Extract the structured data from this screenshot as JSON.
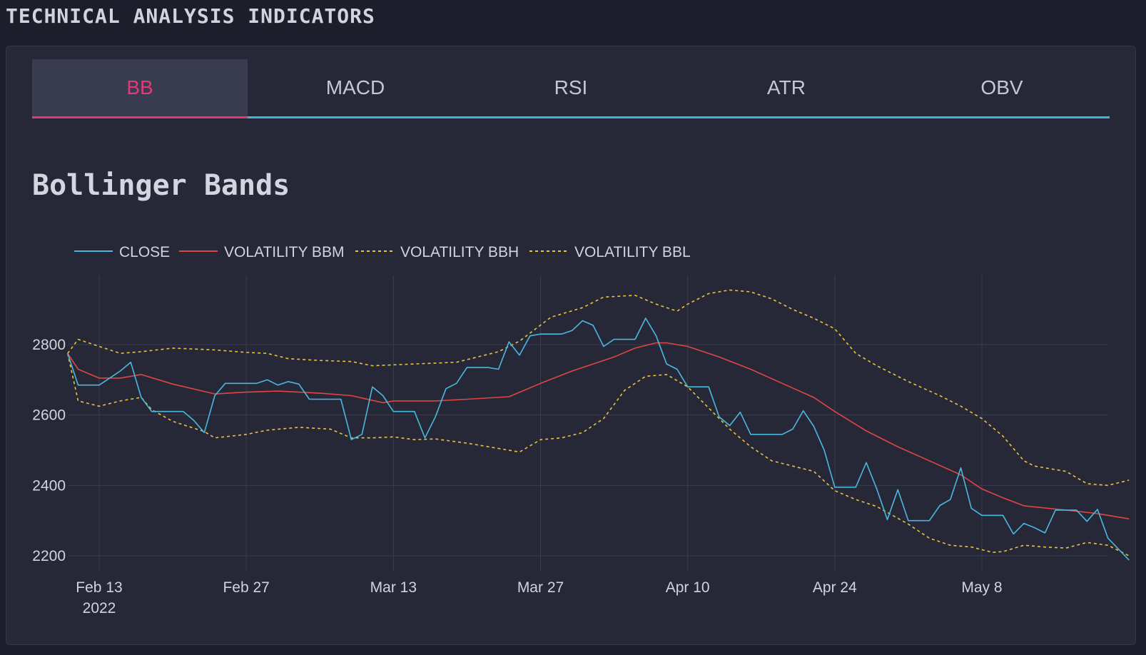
{
  "header": {
    "title": "TECHNICAL ANALYSIS INDICATORS"
  },
  "tabs": [
    {
      "label": "BB",
      "active": true
    },
    {
      "label": "MACD",
      "active": false
    },
    {
      "label": "RSI",
      "active": false
    },
    {
      "label": "ATR",
      "active": false
    },
    {
      "label": "OBV",
      "active": false
    }
  ],
  "colors": {
    "close": "#4ab8dd",
    "bbm": "#e04545",
    "bbh": "#e8c33c",
    "bbl": "#e8c33c",
    "grid": "#3a3c50",
    "active_tab": "#e23a78",
    "tab_underline": "#3fb5dc"
  },
  "chart_data": {
    "type": "line",
    "title": "Bollinger Bands",
    "xlabel": "",
    "ylabel": "",
    "ylim": [
      2170,
      2990
    ],
    "yticks": [
      2200,
      2400,
      2600,
      2800
    ],
    "xticks": [
      {
        "date": "2022-02-13",
        "label": "Feb 13",
        "sublabel": "2022"
      },
      {
        "date": "2022-02-27",
        "label": "Feb 27",
        "sublabel": ""
      },
      {
        "date": "2022-03-13",
        "label": "Mar 13",
        "sublabel": ""
      },
      {
        "date": "2022-03-27",
        "label": "Mar 27",
        "sublabel": ""
      },
      {
        "date": "2022-04-10",
        "label": "Apr 10",
        "sublabel": ""
      },
      {
        "date": "2022-04-24",
        "label": "Apr 24",
        "sublabel": ""
      },
      {
        "date": "2022-05-08",
        "label": "May 8",
        "sublabel": ""
      }
    ],
    "xrange": [
      "2022-02-10",
      "2022-05-20"
    ],
    "grid": true,
    "legend_position": "top-left",
    "series": [
      {
        "name": "CLOSE",
        "style": "solid",
        "color_key": "close",
        "points": [
          [
            "2022-02-10",
            2775
          ],
          [
            "2022-02-11",
            2685
          ],
          [
            "2022-02-13",
            2685
          ],
          [
            "2022-02-14",
            2705
          ],
          [
            "2022-02-15",
            2725
          ],
          [
            "2022-02-16",
            2750
          ],
          [
            "2022-02-17",
            2650
          ],
          [
            "2022-02-18",
            2610
          ],
          [
            "2022-02-20",
            2610
          ],
          [
            "2022-02-21",
            2610
          ],
          [
            "2022-02-22",
            2585
          ],
          [
            "2022-02-23",
            2550
          ],
          [
            "2022-02-24",
            2655
          ],
          [
            "2022-02-25",
            2690
          ],
          [
            "2022-02-27",
            2690
          ],
          [
            "2022-02-28",
            2690
          ],
          [
            "2022-03-01",
            2700
          ],
          [
            "2022-03-02",
            2685
          ],
          [
            "2022-03-03",
            2695
          ],
          [
            "2022-03-04",
            2688
          ],
          [
            "2022-03-05",
            2645
          ],
          [
            "2022-03-07",
            2645
          ],
          [
            "2022-03-08",
            2645
          ],
          [
            "2022-03-09",
            2530
          ],
          [
            "2022-03-10",
            2545
          ],
          [
            "2022-03-11",
            2680
          ],
          [
            "2022-03-12",
            2655
          ],
          [
            "2022-03-13",
            2610
          ],
          [
            "2022-03-15",
            2610
          ],
          [
            "2022-03-16",
            2535
          ],
          [
            "2022-03-17",
            2595
          ],
          [
            "2022-03-18",
            2675
          ],
          [
            "2022-03-19",
            2690
          ],
          [
            "2022-03-20",
            2735
          ],
          [
            "2022-03-22",
            2735
          ],
          [
            "2022-03-23",
            2730
          ],
          [
            "2022-03-24",
            2808
          ],
          [
            "2022-03-25",
            2770
          ],
          [
            "2022-03-26",
            2825
          ],
          [
            "2022-03-27",
            2830
          ],
          [
            "2022-03-29",
            2830
          ],
          [
            "2022-03-30",
            2840
          ],
          [
            "2022-03-31",
            2868
          ],
          [
            "2022-04-01",
            2855
          ],
          [
            "2022-04-02",
            2795
          ],
          [
            "2022-04-03",
            2815
          ],
          [
            "2022-04-05",
            2815
          ],
          [
            "2022-04-06",
            2875
          ],
          [
            "2022-04-07",
            2825
          ],
          [
            "2022-04-08",
            2745
          ],
          [
            "2022-04-09",
            2730
          ],
          [
            "2022-04-10",
            2680
          ],
          [
            "2022-04-12",
            2680
          ],
          [
            "2022-04-13",
            2595
          ],
          [
            "2022-04-14",
            2570
          ],
          [
            "2022-04-15",
            2608
          ],
          [
            "2022-04-16",
            2545
          ],
          [
            "2022-04-17",
            2545
          ],
          [
            "2022-04-19",
            2545
          ],
          [
            "2022-04-20",
            2560
          ],
          [
            "2022-04-21",
            2612
          ],
          [
            "2022-04-22",
            2568
          ],
          [
            "2022-04-23",
            2500
          ],
          [
            "2022-04-24",
            2395
          ],
          [
            "2022-04-26",
            2395
          ],
          [
            "2022-04-27",
            2465
          ],
          [
            "2022-04-28",
            2390
          ],
          [
            "2022-04-29",
            2303
          ],
          [
            "2022-04-30",
            2388
          ],
          [
            "2022-05-01",
            2300
          ],
          [
            "2022-05-03",
            2300
          ],
          [
            "2022-05-04",
            2343
          ],
          [
            "2022-05-05",
            2360
          ],
          [
            "2022-05-06",
            2450
          ],
          [
            "2022-05-07",
            2335
          ],
          [
            "2022-05-08",
            2315
          ],
          [
            "2022-05-10",
            2315
          ],
          [
            "2022-05-11",
            2262
          ],
          [
            "2022-05-12",
            2292
          ],
          [
            "2022-05-13",
            2280
          ],
          [
            "2022-05-14",
            2265
          ],
          [
            "2022-05-15",
            2330
          ],
          [
            "2022-05-17",
            2330
          ],
          [
            "2022-05-18",
            2298
          ],
          [
            "2022-05-19",
            2332
          ],
          [
            "2022-05-20",
            2250
          ],
          [
            "2022-05-22",
            2188
          ]
        ]
      },
      {
        "name": "VOLATILITY BBM",
        "style": "solid",
        "color_key": "bbm",
        "points": [
          [
            "2022-02-10",
            2775
          ],
          [
            "2022-02-11",
            2730
          ],
          [
            "2022-02-13",
            2705
          ],
          [
            "2022-02-15",
            2705
          ],
          [
            "2022-02-17",
            2715
          ],
          [
            "2022-02-20",
            2688
          ],
          [
            "2022-02-24",
            2660
          ],
          [
            "2022-02-27",
            2665
          ],
          [
            "2022-03-02",
            2668
          ],
          [
            "2022-03-06",
            2662
          ],
          [
            "2022-03-09",
            2655
          ],
          [
            "2022-03-12",
            2635
          ],
          [
            "2022-03-13",
            2640
          ],
          [
            "2022-03-17",
            2640
          ],
          [
            "2022-03-20",
            2645
          ],
          [
            "2022-03-24",
            2652
          ],
          [
            "2022-03-27",
            2690
          ],
          [
            "2022-03-30",
            2725
          ],
          [
            "2022-04-03",
            2765
          ],
          [
            "2022-04-05",
            2790
          ],
          [
            "2022-04-07",
            2805
          ],
          [
            "2022-04-08",
            2805
          ],
          [
            "2022-04-10",
            2795
          ],
          [
            "2022-04-13",
            2765
          ],
          [
            "2022-04-16",
            2730
          ],
          [
            "2022-04-19",
            2690
          ],
          [
            "2022-04-22",
            2650
          ],
          [
            "2022-04-24",
            2610
          ],
          [
            "2022-04-27",
            2555
          ],
          [
            "2022-04-30",
            2510
          ],
          [
            "2022-05-03",
            2470
          ],
          [
            "2022-05-06",
            2430
          ],
          [
            "2022-05-08",
            2390
          ],
          [
            "2022-05-10",
            2365
          ],
          [
            "2022-05-12",
            2342
          ],
          [
            "2022-05-16",
            2330
          ],
          [
            "2022-05-19",
            2320
          ],
          [
            "2022-05-22",
            2305
          ]
        ]
      },
      {
        "name": "VOLATILITY BBH",
        "style": "dashed",
        "color_key": "bbh",
        "points": [
          [
            "2022-02-10",
            2775
          ],
          [
            "2022-02-11",
            2815
          ],
          [
            "2022-02-13",
            2795
          ],
          [
            "2022-02-15",
            2775
          ],
          [
            "2022-02-17",
            2780
          ],
          [
            "2022-02-20",
            2790
          ],
          [
            "2022-02-24",
            2785
          ],
          [
            "2022-02-27",
            2778
          ],
          [
            "2022-03-01",
            2775
          ],
          [
            "2022-03-03",
            2760
          ],
          [
            "2022-03-06",
            2755
          ],
          [
            "2022-03-09",
            2752
          ],
          [
            "2022-03-11",
            2740
          ],
          [
            "2022-03-15",
            2745
          ],
          [
            "2022-03-19",
            2750
          ],
          [
            "2022-03-23",
            2780
          ],
          [
            "2022-03-25",
            2810
          ],
          [
            "2022-03-28",
            2878
          ],
          [
            "2022-03-31",
            2905
          ],
          [
            "2022-04-02",
            2935
          ],
          [
            "2022-04-05",
            2940
          ],
          [
            "2022-04-07",
            2915
          ],
          [
            "2022-04-09",
            2895
          ],
          [
            "2022-04-10",
            2915
          ],
          [
            "2022-04-12",
            2945
          ],
          [
            "2022-04-14",
            2955
          ],
          [
            "2022-04-16",
            2950
          ],
          [
            "2022-04-18",
            2930
          ],
          [
            "2022-04-20",
            2900
          ],
          [
            "2022-04-22",
            2875
          ],
          [
            "2022-04-24",
            2845
          ],
          [
            "2022-04-26",
            2775
          ],
          [
            "2022-04-28",
            2740
          ],
          [
            "2022-05-01",
            2695
          ],
          [
            "2022-05-04",
            2655
          ],
          [
            "2022-05-06",
            2625
          ],
          [
            "2022-05-08",
            2590
          ],
          [
            "2022-05-10",
            2540
          ],
          [
            "2022-05-12",
            2470
          ],
          [
            "2022-05-13",
            2455
          ],
          [
            "2022-05-16",
            2440
          ],
          [
            "2022-05-18",
            2405
          ],
          [
            "2022-05-20",
            2400
          ],
          [
            "2022-05-22",
            2415
          ]
        ]
      },
      {
        "name": "VOLATILITY BBL",
        "style": "dashed",
        "color_key": "bbl",
        "points": [
          [
            "2022-02-10",
            2775
          ],
          [
            "2022-02-11",
            2640
          ],
          [
            "2022-02-13",
            2625
          ],
          [
            "2022-02-15",
            2640
          ],
          [
            "2022-02-17",
            2650
          ],
          [
            "2022-02-18",
            2615
          ],
          [
            "2022-02-20",
            2582
          ],
          [
            "2022-02-23",
            2553
          ],
          [
            "2022-02-24",
            2535
          ],
          [
            "2022-02-27",
            2545
          ],
          [
            "2022-03-01",
            2557
          ],
          [
            "2022-03-04",
            2565
          ],
          [
            "2022-03-07",
            2560
          ],
          [
            "2022-03-09",
            2535
          ],
          [
            "2022-03-11",
            2535
          ],
          [
            "2022-03-13",
            2538
          ],
          [
            "2022-03-15",
            2530
          ],
          [
            "2022-03-17",
            2532
          ],
          [
            "2022-03-20",
            2520
          ],
          [
            "2022-03-23",
            2505
          ],
          [
            "2022-03-25",
            2495
          ],
          [
            "2022-03-27",
            2530
          ],
          [
            "2022-03-29",
            2535
          ],
          [
            "2022-03-31",
            2550
          ],
          [
            "2022-04-02",
            2590
          ],
          [
            "2022-04-04",
            2670
          ],
          [
            "2022-04-06",
            2710
          ],
          [
            "2022-04-08",
            2715
          ],
          [
            "2022-04-10",
            2680
          ],
          [
            "2022-04-12",
            2620
          ],
          [
            "2022-04-14",
            2560
          ],
          [
            "2022-04-16",
            2510
          ],
          [
            "2022-04-18",
            2470
          ],
          [
            "2022-04-20",
            2455
          ],
          [
            "2022-04-22",
            2440
          ],
          [
            "2022-04-24",
            2385
          ],
          [
            "2022-04-26",
            2360
          ],
          [
            "2022-04-28",
            2340
          ],
          [
            "2022-05-01",
            2290
          ],
          [
            "2022-05-03",
            2250
          ],
          [
            "2022-05-05",
            2230
          ],
          [
            "2022-05-07",
            2225
          ],
          [
            "2022-05-09",
            2210
          ],
          [
            "2022-05-10",
            2212
          ],
          [
            "2022-05-12",
            2230
          ],
          [
            "2022-05-14",
            2225
          ],
          [
            "2022-05-16",
            2222
          ],
          [
            "2022-05-18",
            2238
          ],
          [
            "2022-05-20",
            2230
          ],
          [
            "2022-05-22",
            2200
          ]
        ]
      }
    ]
  }
}
